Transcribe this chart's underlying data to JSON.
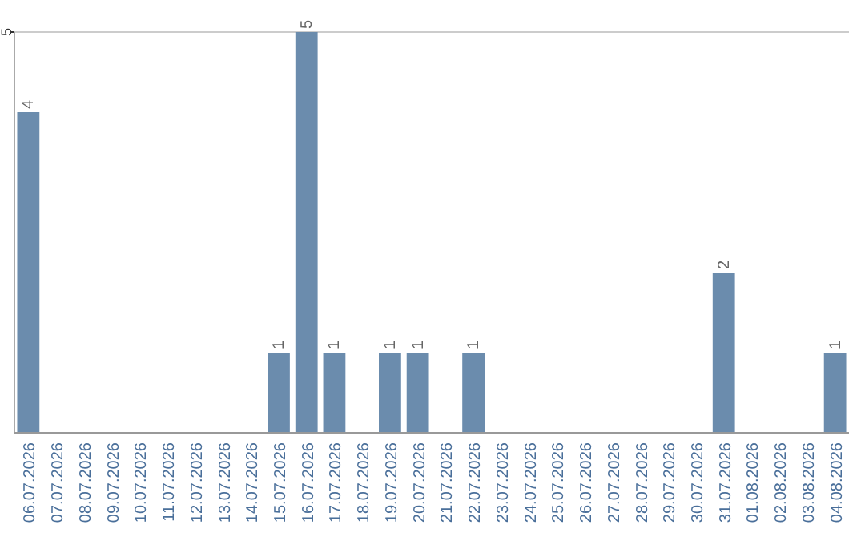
{
  "chart_data": {
    "type": "bar",
    "categories": [
      "06.07.2026",
      "07.07.2026",
      "08.07.2026",
      "09.07.2026",
      "10.07.2026",
      "11.07.2026",
      "12.07.2026",
      "13.07.2026",
      "14.07.2026",
      "15.07.2026",
      "16.07.2026",
      "17.07.2026",
      "18.07.2026",
      "19.07.2026",
      "20.07.2026",
      "21.07.2026",
      "22.07.2026",
      "23.07.2026",
      "24.07.2026",
      "25.07.2026",
      "26.07.2026",
      "27.07.2026",
      "28.07.2026",
      "29.07.2026",
      "30.07.2026",
      "31.07.2026",
      "01.08.2026",
      "02.08.2026",
      "03.08.2026",
      "04.08.2026"
    ],
    "values": [
      4,
      0,
      0,
      0,
      0,
      0,
      0,
      0,
      0,
      1,
      5,
      1,
      0,
      1,
      1,
      0,
      1,
      0,
      0,
      0,
      0,
      0,
      0,
      0,
      0,
      2,
      0,
      0,
      0,
      1
    ],
    "value_labels": [
      "4",
      null,
      null,
      null,
      null,
      null,
      null,
      null,
      null,
      "1",
      "5",
      "1",
      null,
      "1",
      "1",
      null,
      "1",
      null,
      null,
      null,
      null,
      null,
      null,
      null,
      null,
      "2",
      null,
      null,
      null,
      "1"
    ],
    "color": "#6b8cad",
    "ylim": [
      0,
      5
    ],
    "yticks": [
      5
    ]
  }
}
